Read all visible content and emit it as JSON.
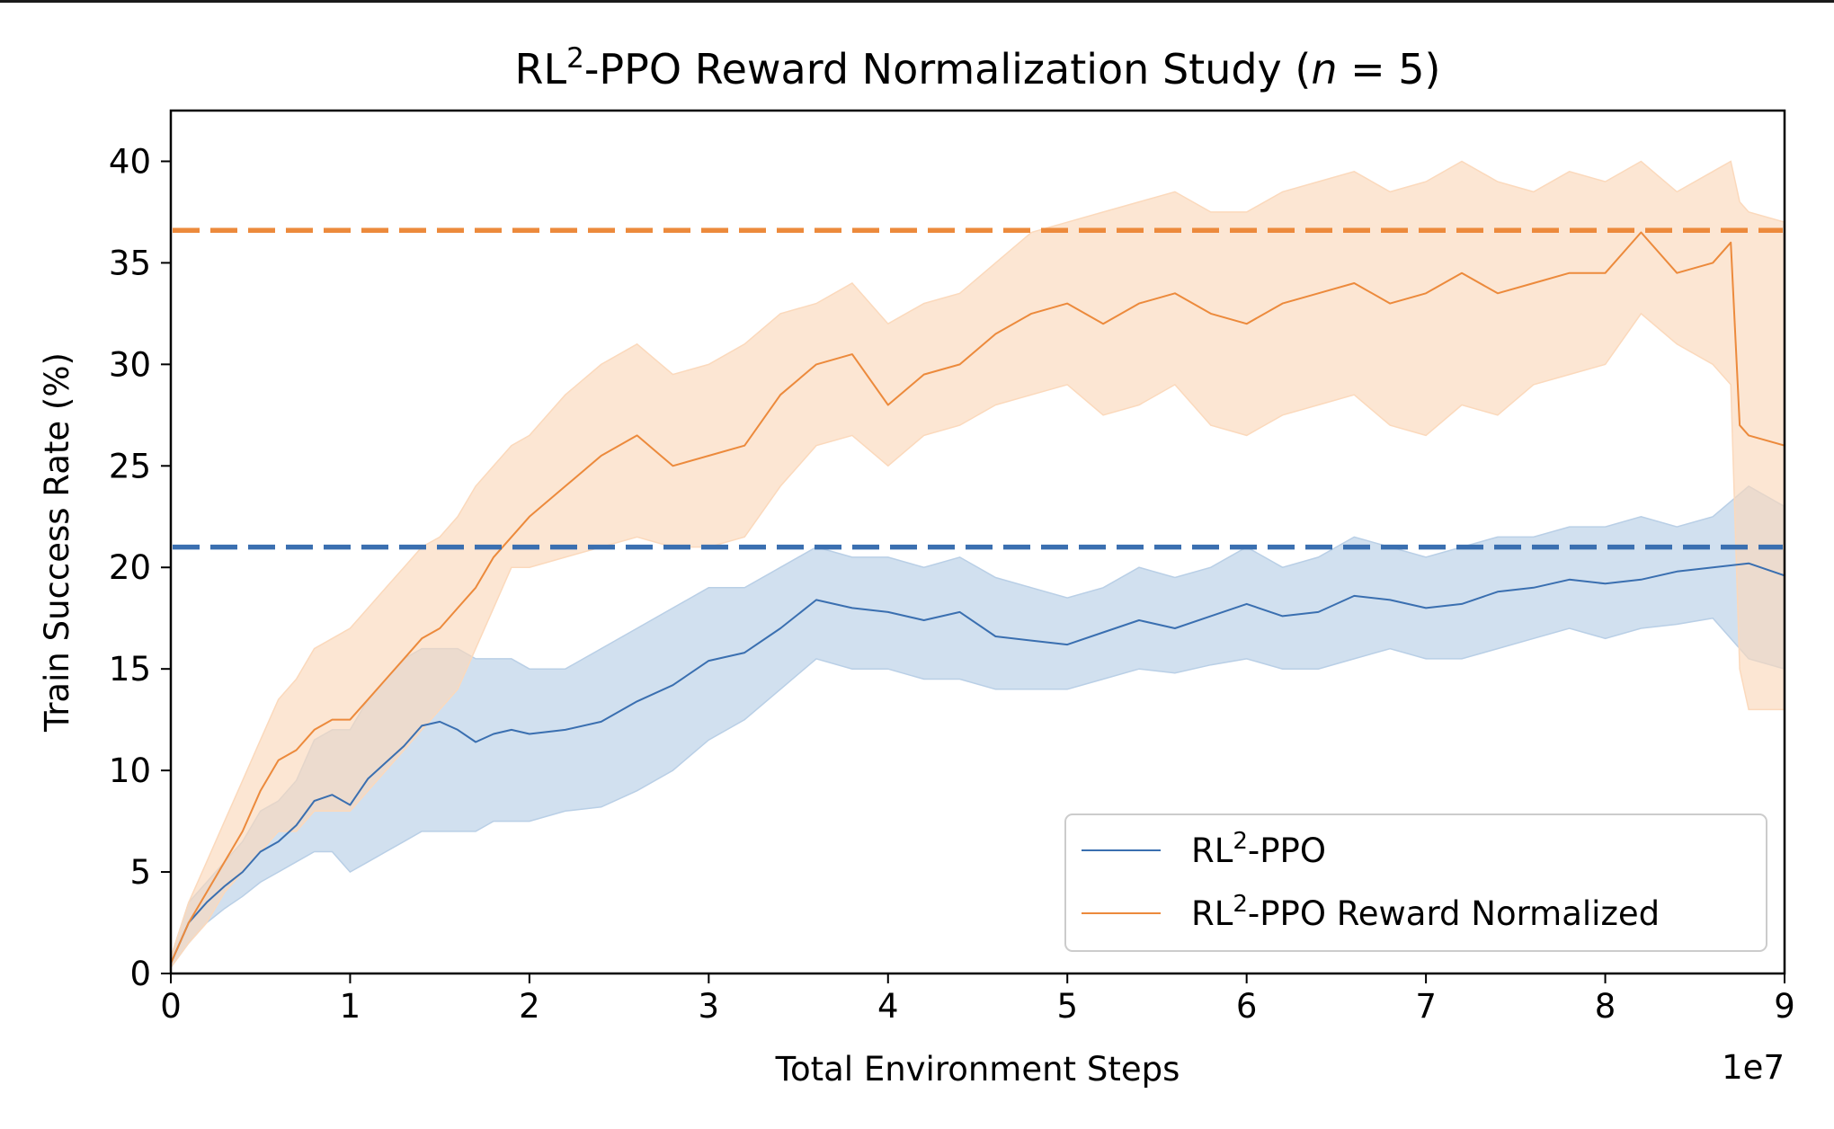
{
  "chart_data": {
    "type": "line",
    "title": {
      "prefix": "RL",
      "sup": "2",
      "middle": "-PPO Reward Normalization Study (",
      "italic": "n",
      "suffix": " = 5)"
    },
    "xlabel": "Total Environment Steps",
    "ylabel": "Train Success Rate (%)",
    "x_offset_label": "1e7",
    "xlim": [
      0,
      9
    ],
    "ylim": [
      0,
      42.5
    ],
    "xticks": [
      0,
      1,
      2,
      3,
      4,
      5,
      6,
      7,
      8,
      9
    ],
    "yticks": [
      0,
      5,
      10,
      15,
      20,
      25,
      30,
      35,
      40
    ],
    "legend_position": "lower-right",
    "grid": false,
    "series": [
      {
        "name": {
          "prefix": "RL",
          "sup": "2",
          "suffix": "-PPO"
        },
        "color": "#3a6fb0",
        "band_color": "#b9cfe6",
        "reference_line": 21.0,
        "x": [
          0,
          0.1,
          0.2,
          0.3,
          0.4,
          0.5,
          0.6,
          0.7,
          0.8,
          0.9,
          1.0,
          1.1,
          1.2,
          1.3,
          1.4,
          1.5,
          1.6,
          1.7,
          1.8,
          1.9,
          2.0,
          2.2,
          2.4,
          2.6,
          2.8,
          3.0,
          3.2,
          3.4,
          3.6,
          3.8,
          4.0,
          4.2,
          4.4,
          4.6,
          4.8,
          5.0,
          5.2,
          5.4,
          5.6,
          5.8,
          6.0,
          6.2,
          6.4,
          6.6,
          6.8,
          7.0,
          7.2,
          7.4,
          7.6,
          7.8,
          8.0,
          8.2,
          8.4,
          8.6,
          8.8,
          9.0
        ],
        "mean": [
          0.5,
          2.5,
          3.5,
          4.3,
          5.0,
          6.0,
          6.5,
          7.3,
          8.5,
          8.8,
          8.3,
          9.6,
          10.4,
          11.2,
          12.2,
          12.4,
          12.0,
          11.4,
          11.8,
          12.0,
          11.8,
          12.0,
          12.4,
          13.4,
          14.2,
          15.4,
          15.8,
          17.0,
          18.4,
          18.0,
          17.8,
          17.4,
          17.8,
          16.6,
          16.4,
          16.2,
          16.8,
          17.4,
          17.0,
          17.6,
          18.2,
          17.6,
          17.8,
          18.6,
          18.4,
          18.0,
          18.2,
          18.8,
          19.0,
          19.4,
          19.2,
          19.4,
          19.8,
          20.0,
          20.2,
          19.6
        ],
        "lower": [
          0.3,
          1.5,
          2.5,
          3.2,
          3.8,
          4.5,
          5.0,
          5.5,
          6.0,
          6.0,
          5.0,
          5.5,
          6.0,
          6.5,
          7.0,
          7.0,
          7.0,
          7.0,
          7.5,
          7.5,
          7.5,
          8.0,
          8.2,
          9.0,
          10.0,
          11.5,
          12.5,
          14.0,
          15.5,
          15.0,
          15.0,
          14.5,
          14.5,
          14.0,
          14.0,
          14.0,
          14.5,
          15.0,
          14.8,
          15.2,
          15.5,
          15.0,
          15.0,
          15.5,
          16.0,
          15.5,
          15.5,
          16.0,
          16.5,
          17.0,
          16.5,
          17.0,
          17.2,
          17.5,
          15.5,
          15.0
        ],
        "upper": [
          0.8,
          3.5,
          4.5,
          5.5,
          6.5,
          8.0,
          8.5,
          9.5,
          11.5,
          12.0,
          12.0,
          13.5,
          14.5,
          15.5,
          16.0,
          16.0,
          16.0,
          15.5,
          15.5,
          15.5,
          15.0,
          15.0,
          16.0,
          17.0,
          18.0,
          19.0,
          19.0,
          20.0,
          21.0,
          20.5,
          20.5,
          20.0,
          20.5,
          19.5,
          19.0,
          18.5,
          19.0,
          20.0,
          19.5,
          20.0,
          21.0,
          20.0,
          20.5,
          21.5,
          21.0,
          20.5,
          21.0,
          21.5,
          21.5,
          22.0,
          22.0,
          22.5,
          22.0,
          22.5,
          24.0,
          23.0
        ]
      },
      {
        "name": {
          "prefix": "RL",
          "sup": "2",
          "suffix": "-PPO Reward Normalized"
        },
        "color": "#ec8a3c",
        "band_color": "#fbd9bc",
        "reference_line": 36.6,
        "x": [
          0,
          0.1,
          0.2,
          0.3,
          0.4,
          0.5,
          0.6,
          0.7,
          0.8,
          0.9,
          1.0,
          1.1,
          1.2,
          1.3,
          1.4,
          1.5,
          1.6,
          1.7,
          1.8,
          1.9,
          2.0,
          2.2,
          2.4,
          2.6,
          2.8,
          3.0,
          3.2,
          3.4,
          3.6,
          3.8,
          4.0,
          4.2,
          4.4,
          4.6,
          4.8,
          5.0,
          5.2,
          5.4,
          5.6,
          5.8,
          6.0,
          6.2,
          6.4,
          6.6,
          6.8,
          7.0,
          7.2,
          7.4,
          7.6,
          7.8,
          8.0,
          8.2,
          8.4,
          8.6,
          8.7,
          8.75,
          8.8,
          9.0
        ],
        "mean": [
          0.5,
          2.5,
          4.0,
          5.5,
          7.0,
          9.0,
          10.5,
          11.0,
          12.0,
          12.5,
          12.5,
          13.5,
          14.5,
          15.5,
          16.5,
          17.0,
          18.0,
          19.0,
          20.5,
          21.5,
          22.5,
          24.0,
          25.5,
          26.5,
          25.0,
          25.5,
          26.0,
          28.5,
          30.0,
          30.5,
          28.0,
          29.5,
          30.0,
          31.5,
          32.5,
          33.0,
          32.0,
          33.0,
          33.5,
          32.5,
          32.0,
          33.0,
          33.5,
          34.0,
          33.0,
          33.5,
          34.5,
          33.5,
          34.0,
          34.5,
          34.5,
          36.5,
          34.5,
          35.0,
          36.0,
          27.0,
          26.5,
          26.0
        ],
        "lower": [
          0.3,
          1.5,
          2.5,
          4.0,
          5.0,
          6.0,
          7.0,
          7.0,
          8.0,
          8.0,
          8.0,
          9.0,
          10.0,
          11.0,
          12.0,
          13.0,
          14.0,
          16.0,
          18.0,
          20.0,
          20.0,
          20.5,
          21.0,
          21.5,
          21.0,
          21.0,
          21.5,
          24.0,
          26.0,
          26.5,
          25.0,
          26.5,
          27.0,
          28.0,
          28.5,
          29.0,
          27.5,
          28.0,
          29.0,
          27.0,
          26.5,
          27.5,
          28.0,
          28.5,
          27.0,
          26.5,
          28.0,
          27.5,
          29.0,
          29.5,
          30.0,
          32.5,
          31.0,
          30.0,
          29.0,
          15.0,
          13.0,
          13.0
        ],
        "upper": [
          0.8,
          3.5,
          5.5,
          7.5,
          9.5,
          11.5,
          13.5,
          14.5,
          16.0,
          16.5,
          17.0,
          18.0,
          19.0,
          20.0,
          21.0,
          21.5,
          22.5,
          24.0,
          25.0,
          26.0,
          26.5,
          28.5,
          30.0,
          31.0,
          29.5,
          30.0,
          31.0,
          32.5,
          33.0,
          34.0,
          32.0,
          33.0,
          33.5,
          35.0,
          36.5,
          37.0,
          37.5,
          38.0,
          38.5,
          37.5,
          37.5,
          38.5,
          39.0,
          39.5,
          38.5,
          39.0,
          40.0,
          39.0,
          38.5,
          39.5,
          39.0,
          40.0,
          38.5,
          39.5,
          40.0,
          38.0,
          37.5,
          37.0
        ]
      }
    ]
  }
}
